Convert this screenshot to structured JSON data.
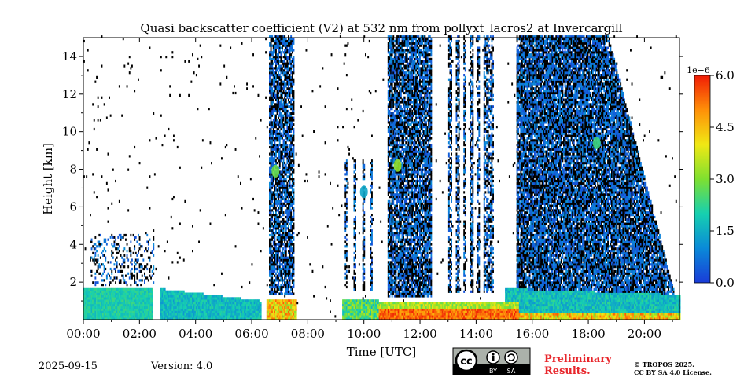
{
  "chart_data": {
    "type": "heatmap",
    "title": "Quasi backscatter coefficient (V2) at 532 nm from pollyxt_lacros2 at Invercargill",
    "xlabel": "Time [UTC]",
    "ylabel": "Height [km]",
    "xlim": [
      0,
      21.25
    ],
    "ylim": [
      0,
      15
    ],
    "x_ticks": [
      {
        "v": 0,
        "label": "00:00"
      },
      {
        "v": 2,
        "label": "02:00"
      },
      {
        "v": 4,
        "label": "04:00"
      },
      {
        "v": 6,
        "label": "06:00"
      },
      {
        "v": 8,
        "label": "08:00"
      },
      {
        "v": 10,
        "label": "10:00"
      },
      {
        "v": 12,
        "label": "12:00"
      },
      {
        "v": 14,
        "label": "14:00"
      },
      {
        "v": 16,
        "label": "16:00"
      },
      {
        "v": 18,
        "label": "18:00"
      },
      {
        "v": 20,
        "label": "20:00"
      }
    ],
    "y_ticks": [
      {
        "v": 2,
        "label": "2"
      },
      {
        "v": 4,
        "label": "4"
      },
      {
        "v": 6,
        "label": "6"
      },
      {
        "v": 8,
        "label": "8"
      },
      {
        "v": 10,
        "label": "10"
      },
      {
        "v": 12,
        "label": "12"
      },
      {
        "v": 14,
        "label": "14"
      }
    ],
    "colorbar": {
      "min": 0,
      "max": 6.0,
      "exponent_label": "1e−6",
      "ticks": [
        {
          "v": 0.0,
          "label": "0.0"
        },
        {
          "v": 1.5,
          "label": "1.5"
        },
        {
          "v": 3.0,
          "label": "3.0"
        },
        {
          "v": 4.5,
          "label": "4.5"
        },
        {
          "v": 6.0,
          "label": "6.0"
        }
      ],
      "colors": [
        "#1a3cd8",
        "#0a8ad8",
        "#16d0b0",
        "#7ee030",
        "#f0e814",
        "#ff9008",
        "#f01c06"
      ]
    },
    "features": [
      {
        "desc": "boundary layer",
        "t0": 0,
        "t1": 6.3,
        "h0": 0,
        "h1": 1.6,
        "value": 2.0
      },
      {
        "desc": "cloud column",
        "t0": 6.6,
        "t1": 7.4,
        "h0": 1.3,
        "h1": 15,
        "value": 0.6
      },
      {
        "desc": "cloud column",
        "t0": 10.9,
        "t1": 12.3,
        "h0": 1.2,
        "h1": 15,
        "value": 0.6
      },
      {
        "desc": "cloud column",
        "t0": 15.4,
        "t1": 18.7,
        "h0": 1.2,
        "h1": 15,
        "value": 0.6
      },
      {
        "desc": "strong aerosol layer",
        "t0": 10.5,
        "t1": 15.5,
        "h0": 0,
        "h1": 0.9,
        "value": 5.5
      },
      {
        "desc": "aerosol layer",
        "t0": 15.0,
        "t1": 21.25,
        "h0": 0,
        "h1": 1.5,
        "value": 1.8
      }
    ]
  },
  "footer": {
    "date": "2025-09-15",
    "version": "Version: 4.0",
    "license_badge": "cc-by-sa-icon",
    "cc_label": "BY",
    "sa_label": "SA",
    "preliminary_line1": "Preliminary",
    "preliminary_line2": "Results.",
    "copyright_line1": "© TROPOS 2025.",
    "copyright_line2": "CC BY SA 4.0 License."
  }
}
